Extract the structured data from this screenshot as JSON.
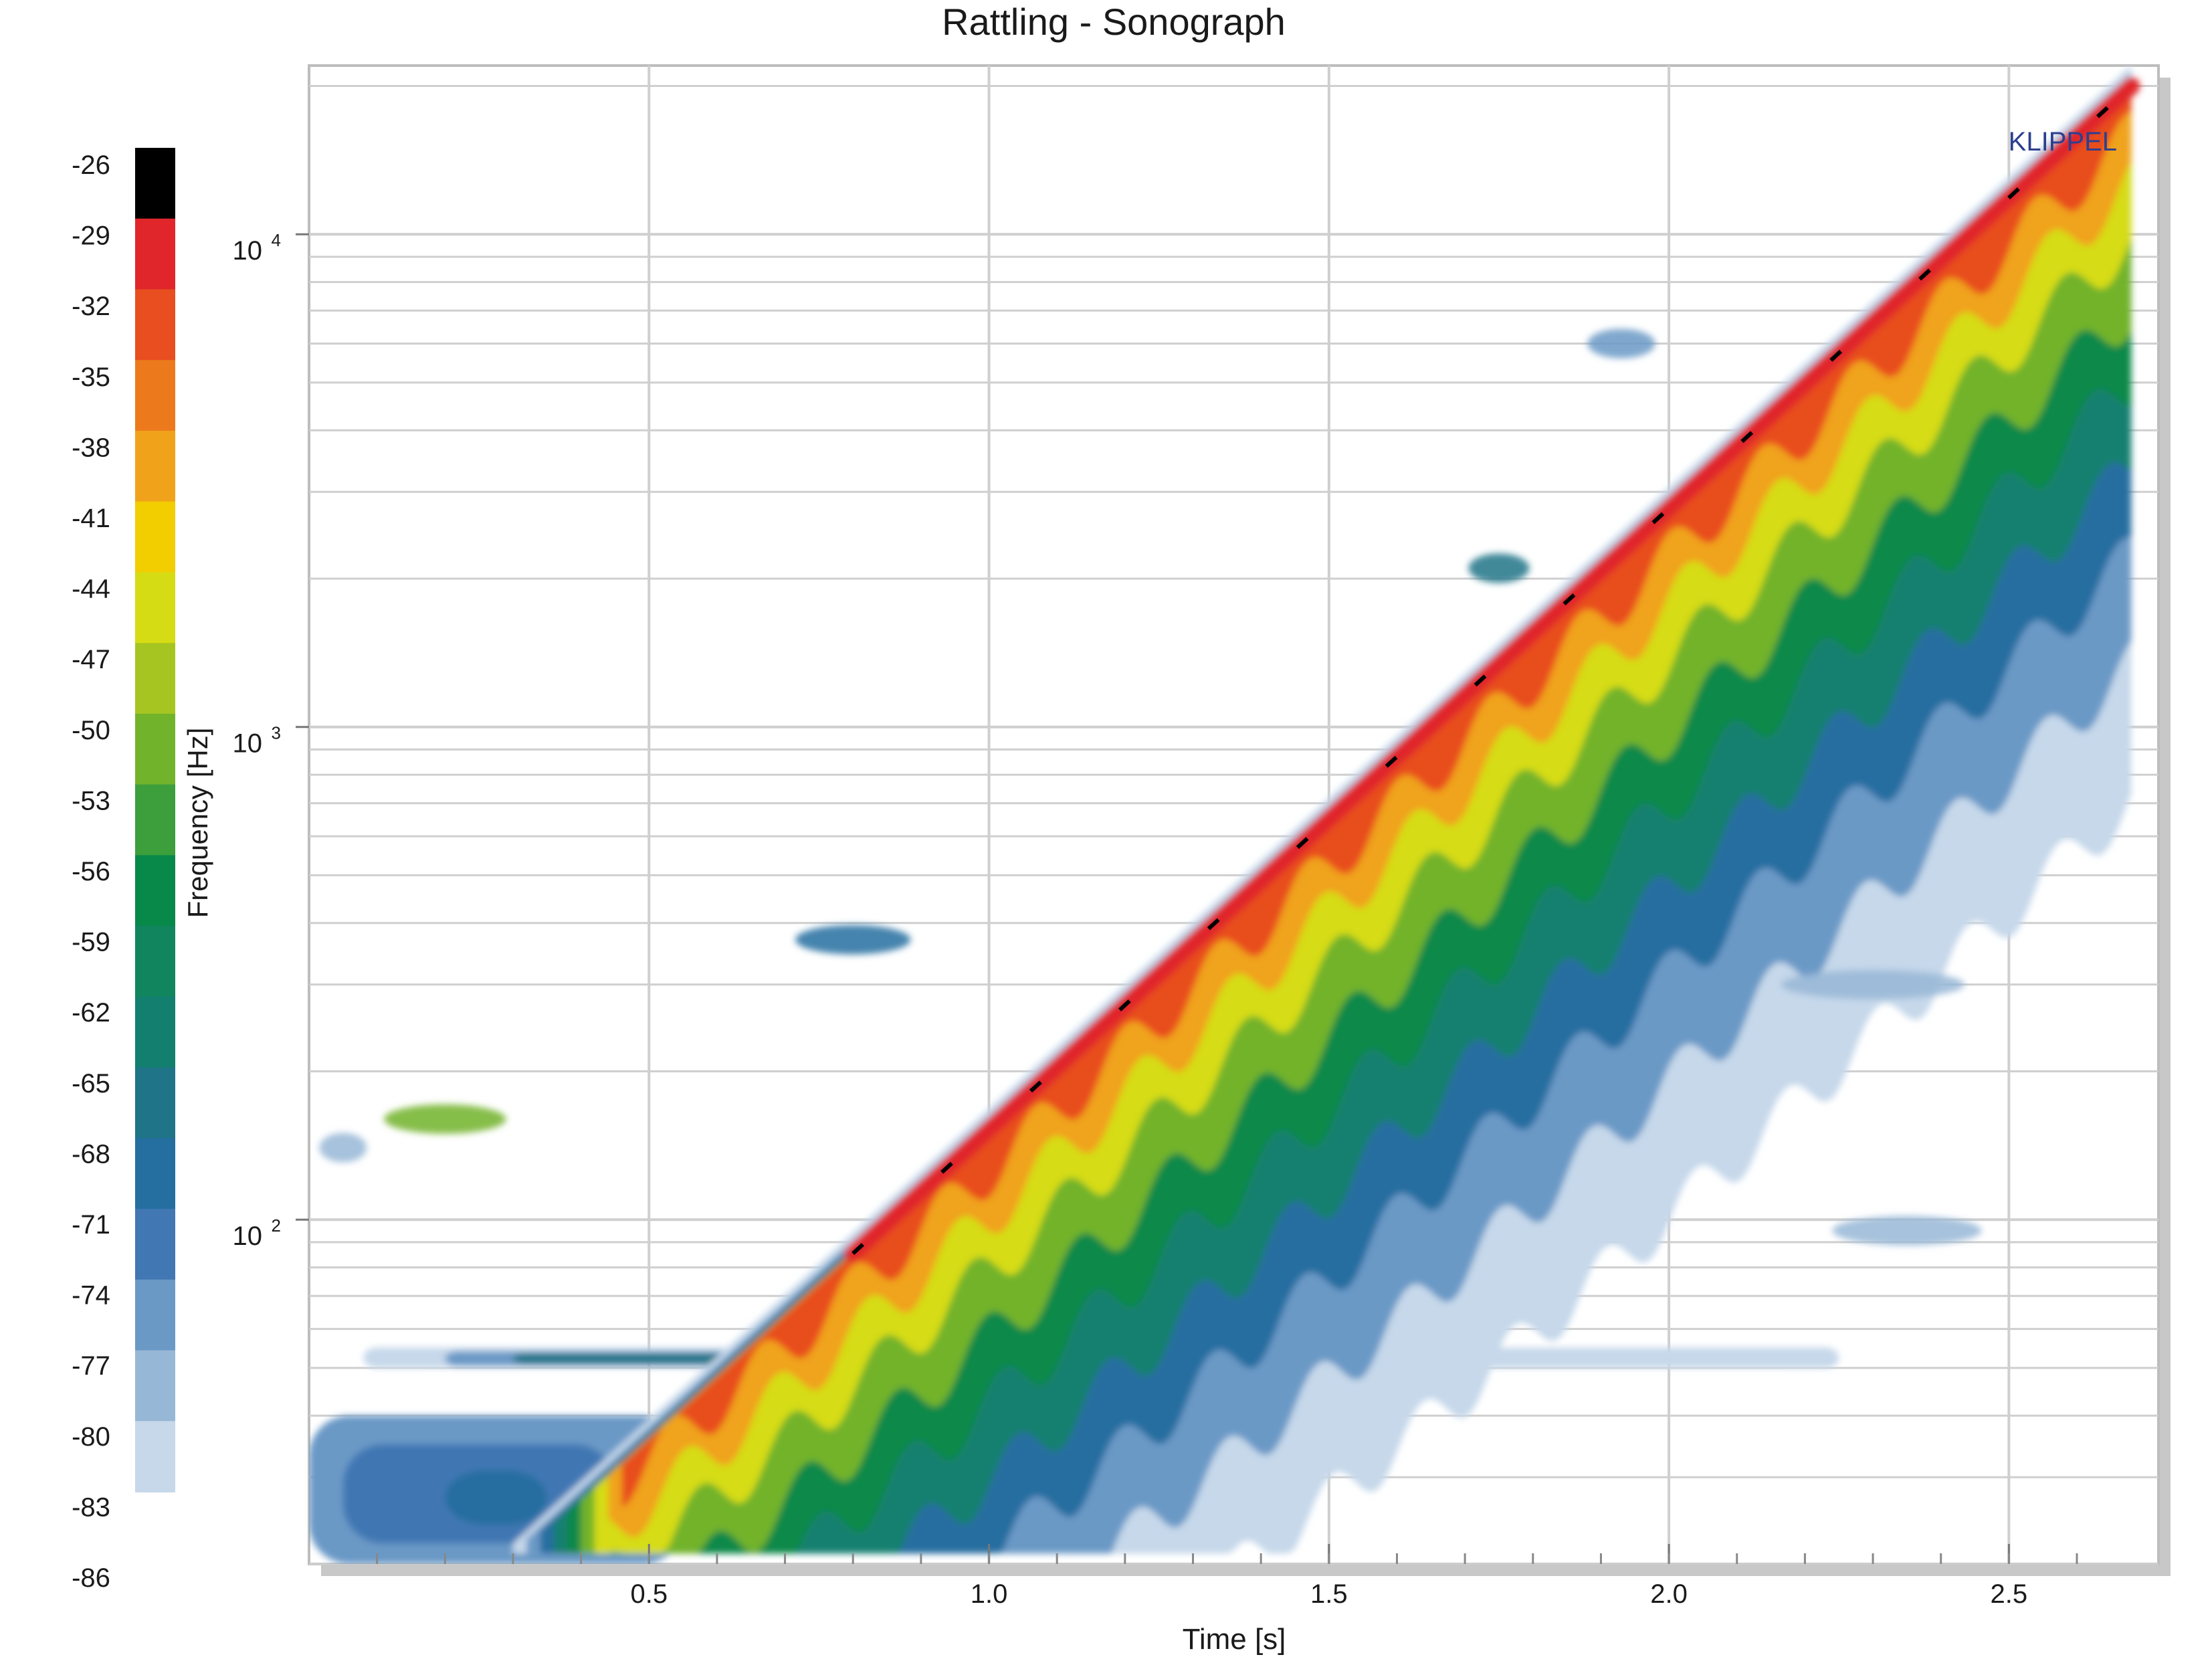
{
  "chart_data": {
    "type": "heatmap",
    "title": "Rattling - Sonograph",
    "xlabel": "Time [s]",
    "ylabel": "Frequency [Hz]",
    "xlim": [
      0.0,
      2.72
    ],
    "ylim": [
      20,
      22000
    ],
    "yscale": "log",
    "x_ticks": [
      "0.5",
      "1.0",
      "1.5",
      "2.0",
      "2.5"
    ],
    "x_tick_values": [
      0.5,
      1.0,
      1.5,
      2.0,
      2.5
    ],
    "y_ticks": [
      {
        "base": "10",
        "exp": "2",
        "value": 100
      },
      {
        "base": "10",
        "exp": "3",
        "value": 1000
      },
      {
        "base": "10",
        "exp": "4",
        "value": 10000
      }
    ],
    "grid": true,
    "watermark": "KLIPPEL",
    "colorbar": {
      "labels": [
        "-26",
        "-29",
        "-32",
        "-35",
        "-38",
        "-41",
        "-44",
        "-47",
        "-50",
        "-53",
        "-56",
        "-59",
        "-62",
        "-65",
        "-68",
        "-71",
        "-74",
        "-77",
        "-80",
        "-83",
        "-86"
      ],
      "colors": [
        "#000000",
        "#e0262a",
        "#e84e1f",
        "#ec7a1d",
        "#f0a31a",
        "#f2cd00",
        "#d6dc14",
        "#a6c520",
        "#72b32c",
        "#3c9f3c",
        "#08894a",
        "#11855e",
        "#13806f",
        "#1f7487",
        "#256ea0",
        "#4177b3",
        "#6a99c6",
        "#97b7d6",
        "#c6d8ea"
      ]
    },
    "chirp": {
      "description_points": [
        [
          0.3,
          20
        ],
        [
          2.68,
          20000
        ]
      ],
      "start": {
        "time": 0.3,
        "freq": 20
      },
      "end": {
        "time": 2.68,
        "freq": 20000
      }
    },
    "features": [
      {
        "kind": "fundamental",
        "x": [
          0.3,
          2.68
        ],
        "y": [
          20,
          20000
        ],
        "level": -26
      },
      {
        "kind": "harmonic_band",
        "x": [
          0.4,
          2.68
        ],
        "y": [
          20,
          20000
        ],
        "level": -50
      },
      {
        "kind": "low_band",
        "x": [
          0.0,
          2.25
        ],
        "y": [
          52,
          52
        ],
        "level": -80
      },
      {
        "kind": "low_noise",
        "x": [
          0.0,
          0.75
        ],
        "y": [
          20,
          45
        ],
        "level": -71
      }
    ]
  }
}
